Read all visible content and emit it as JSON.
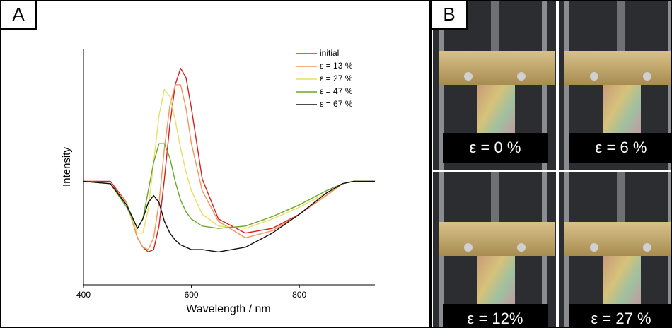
{
  "panel_labels": [
    "A",
    "B"
  ],
  "photos": [
    {
      "caption": "ε = 0 %"
    },
    {
      "caption": "ε = 6 %"
    },
    {
      "caption": "ε = 12%"
    },
    {
      "caption": "ε = 27 %"
    }
  ],
  "chart_data": {
    "type": "line",
    "x_label": "Wavelength / nm",
    "y_label": "Intensity",
    "x": [
      400,
      450,
      480,
      500,
      510,
      520,
      530,
      540,
      550,
      560,
      570,
      580,
      590,
      600,
      620,
      650,
      700,
      750,
      800,
      850,
      880,
      900,
      940
    ],
    "series": [
      {
        "name": "initial",
        "color": "#d62020",
        "values": [
          44,
          44,
          35,
          20,
          16,
          14,
          15,
          25,
          45,
          68,
          85,
          92,
          88,
          75,
          45,
          28,
          22,
          24,
          30,
          38,
          43,
          44,
          44
        ]
      },
      {
        "name": "ε = 13 %",
        "color": "#f5965a",
        "values": [
          44,
          43,
          35,
          20,
          16,
          15,
          20,
          35,
          58,
          76,
          85,
          85,
          75,
          60,
          40,
          27,
          20,
          23,
          30,
          38,
          43,
          44,
          44
        ]
      },
      {
        "name": "ε = 27 %",
        "color": "#e8e060",
        "values": [
          44,
          43,
          34,
          22,
          22,
          32,
          52,
          72,
          83,
          80,
          70,
          58,
          48,
          40,
          30,
          25,
          24,
          28,
          33,
          39,
          43,
          44,
          44
        ]
      },
      {
        "name": "ε = 47 %",
        "color": "#6aa82a",
        "values": [
          44,
          43,
          33,
          24,
          28,
          40,
          52,
          60,
          60,
          54,
          44,
          36,
          31,
          28,
          25,
          24,
          25,
          29,
          34,
          40,
          43,
          44,
          44
        ]
      },
      {
        "name": "ε = 67 %",
        "color": "#111111",
        "values": [
          44,
          43,
          34,
          24,
          28,
          35,
          38,
          35,
          27,
          22,
          19,
          17,
          16,
          15,
          15,
          14,
          16,
          22,
          30,
          39,
          43,
          44,
          44
        ]
      }
    ],
    "xlim": [
      400,
      940
    ],
    "xticks": [
      400,
      600,
      800
    ],
    "ylim": [
      0,
      100
    ],
    "legend": "upper right"
  }
}
